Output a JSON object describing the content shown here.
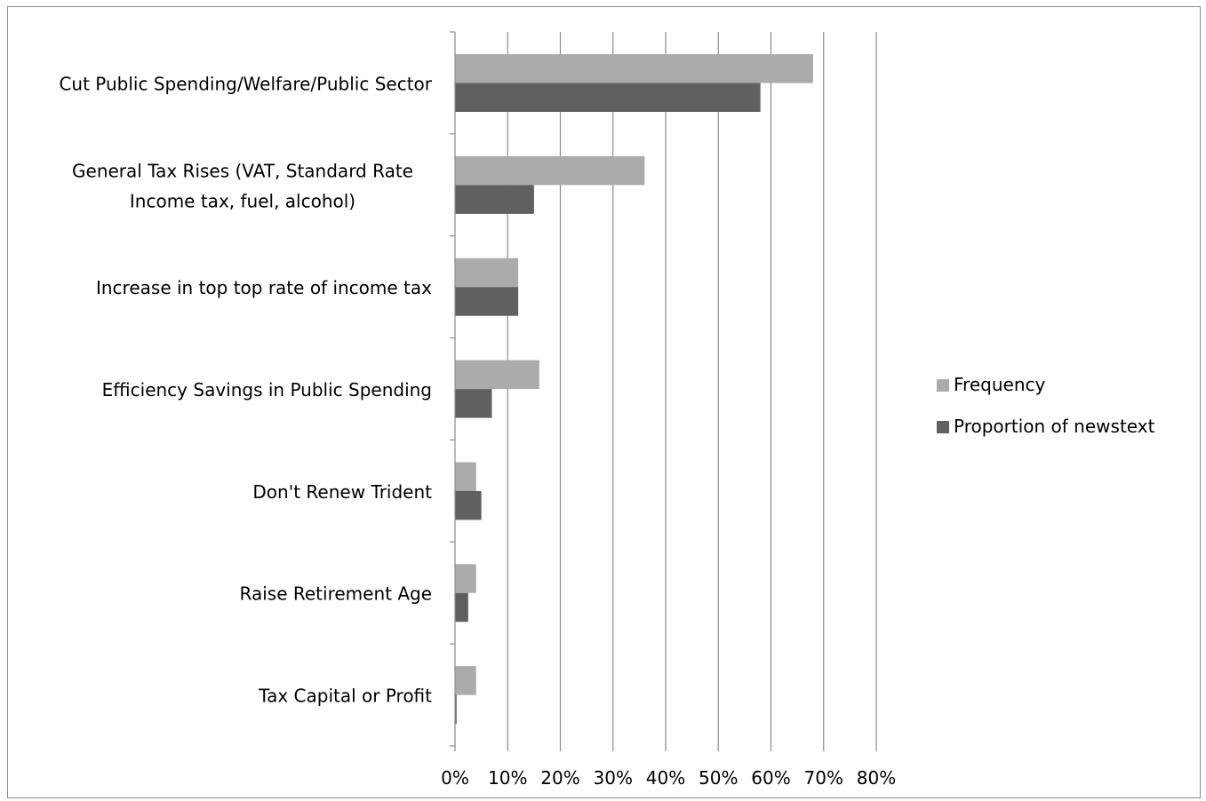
{
  "chart_data": {
    "type": "bar",
    "orientation": "horizontal",
    "categories": [
      "Cut Public Spending/Welfare/Public Sector",
      "General Tax Rises (VAT, Standard Rate Income tax, fuel, alcohol)",
      "Increase in top top rate of income tax",
      "Efficiency Savings in Public Spending",
      "Don't Renew Trident",
      "Raise Retirement Age",
      "Tax Capital or Profit"
    ],
    "category_lines": [
      [
        "Cut Public Spending/Welfare/Public Sector"
      ],
      [
        "General Tax Rises (VAT, Standard Rate",
        "Income tax, fuel, alcohol)"
      ],
      [
        "Increase in top top rate of income tax"
      ],
      [
        "Efficiency Savings in Public Spending"
      ],
      [
        "Don't Renew Trident"
      ],
      [
        "Raise Retirement Age"
      ],
      [
        "Tax Capital or Profit"
      ]
    ],
    "series": [
      {
        "name": "Frequency",
        "color": "#ababab",
        "values": [
          68,
          36,
          12,
          16,
          4,
          4,
          4
        ]
      },
      {
        "name": "Proportion of newstext",
        "color": "#606060",
        "values": [
          58,
          15,
          12,
          7,
          5,
          2.5,
          0.3
        ]
      }
    ],
    "xlim": [
      0,
      80
    ],
    "xticks": [
      "0%",
      "10%",
      "20%",
      "30%",
      "40%",
      "50%",
      "60%",
      "70%",
      "80%"
    ],
    "xtick_values": [
      0,
      10,
      20,
      30,
      40,
      50,
      60,
      70,
      80
    ],
    "grid": "vertical",
    "legend_position": "right",
    "title": "",
    "xlabel": "",
    "ylabel": ""
  }
}
